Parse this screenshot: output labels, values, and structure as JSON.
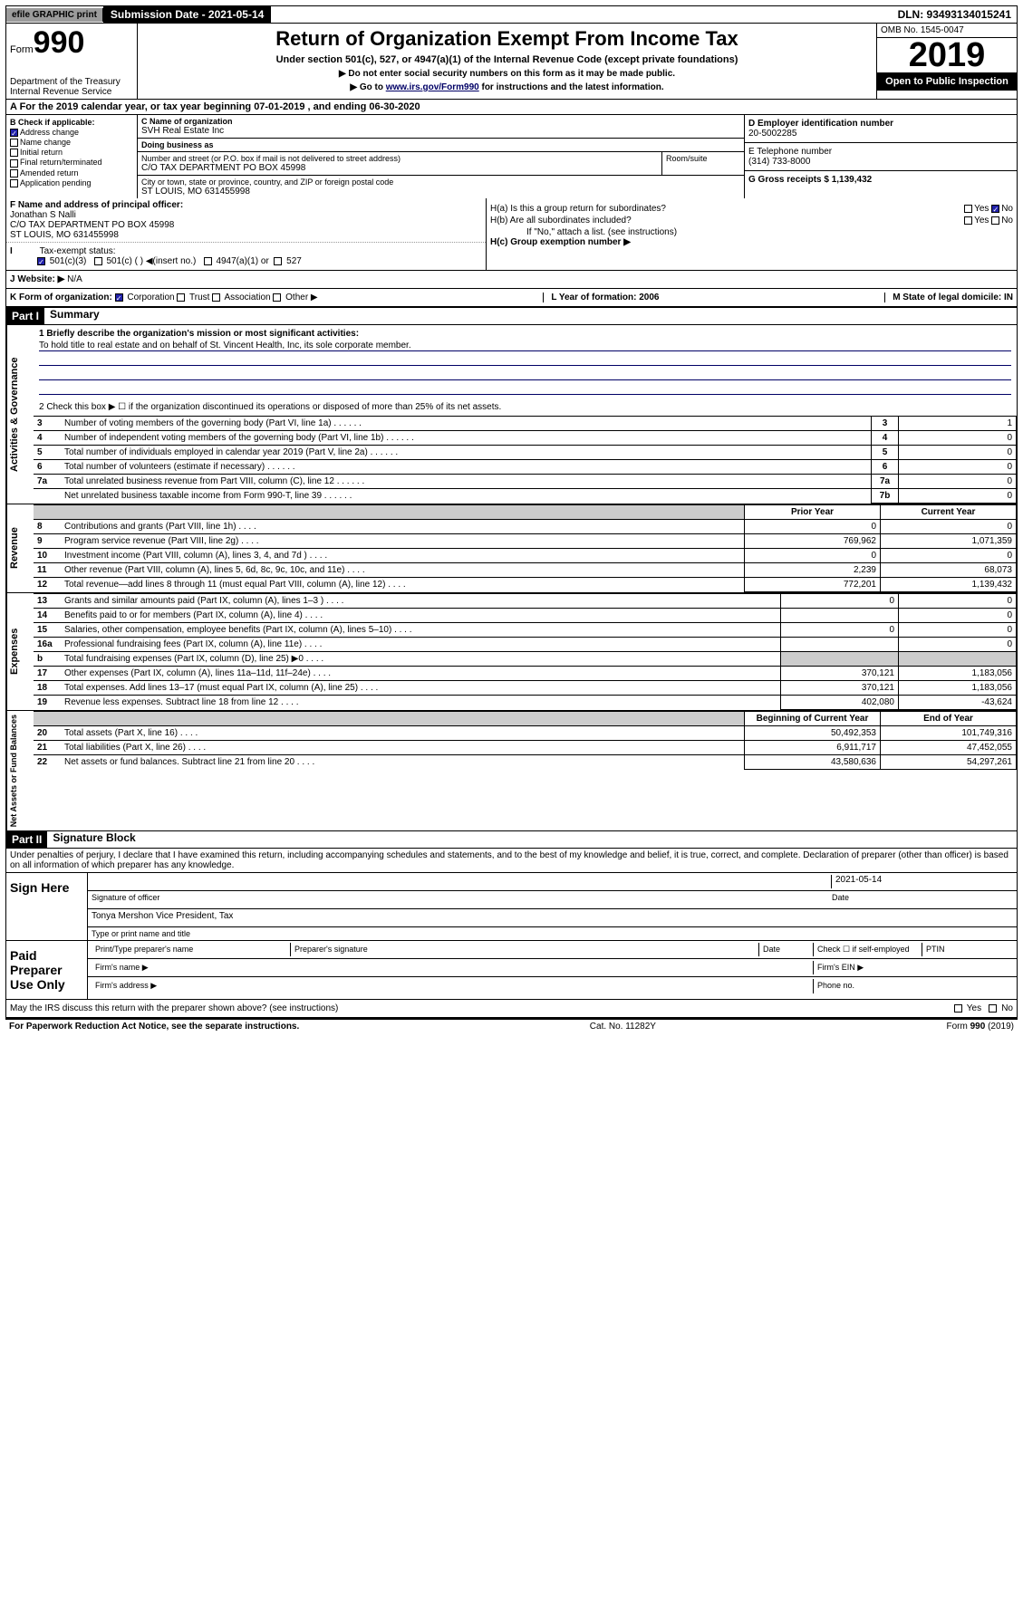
{
  "topbar": {
    "efile": "efile GRAPHIC print",
    "submission": "Submission Date - 2021-05-14",
    "dln": "DLN: 93493134015241"
  },
  "header": {
    "form_prefix": "Form",
    "form_number": "990",
    "dept": "Department of the Treasury Internal Revenue Service",
    "title": "Return of Organization Exempt From Income Tax",
    "subtitle": "Under section 501(c), 527, or 4947(a)(1) of the Internal Revenue Code (except private foundations)",
    "note1": "▶ Do not enter social security numbers on this form as it may be made public.",
    "note2_pre": "▶ Go to ",
    "note2_link": "www.irs.gov/Form990",
    "note2_post": " for instructions and the latest information.",
    "omb": "OMB No. 1545-0047",
    "year": "2019",
    "open_public": "Open to Public Inspection"
  },
  "period": "A For the 2019 calendar year, or tax year beginning 07-01-2019    , and ending 06-30-2020",
  "section_b": {
    "title": "B Check if applicable:",
    "items": [
      "Address change",
      "Name change",
      "Initial return",
      "Final return/terminated",
      "Amended return",
      "Application pending"
    ],
    "checked_idx": 0
  },
  "section_c": {
    "name_lbl": "C Name of organization",
    "name": "SVH Real Estate Inc",
    "dba_lbl": "Doing business as",
    "dba": "",
    "addr_lbl": "Number and street (or P.O. box if mail is not delivered to street address)",
    "addr": "C/O TAX DEPARTMENT PO BOX 45998",
    "room_lbl": "Room/suite",
    "city_lbl": "City or town, state or province, country, and ZIP or foreign postal code",
    "city": "ST LOUIS, MO  631455998"
  },
  "section_d": {
    "lbl": "D Employer identification number",
    "val": "20-5002285"
  },
  "section_e": {
    "lbl": "E Telephone number",
    "val": "(314) 733-8000"
  },
  "section_g": {
    "lbl": "G Gross receipts $ 1,139,432"
  },
  "section_f": {
    "lbl": "F Name and address of principal officer:",
    "name": "Jonathan S Nalli",
    "addr1": "C/O TAX DEPARTMENT PO BOX 45998",
    "addr2": "ST LOUIS, MO  631455998"
  },
  "section_i": {
    "lbl": "Tax-exempt status:",
    "opts": [
      "501(c)(3)",
      "501(c) (  ) ◀(insert no.)",
      "4947(a)(1) or",
      "527"
    ]
  },
  "section_h": {
    "ha": "H(a)  Is this a group return for subordinates?",
    "hb": "H(b)  Are all subordinates included?",
    "hb_note": "If \"No,\" attach a list. (see instructions)",
    "hc": "H(c)  Group exemption number ▶",
    "yes": "Yes",
    "no": "No"
  },
  "section_j": {
    "lbl": "J  Website: ▶",
    "val": "N/A"
  },
  "section_k": {
    "lbl": "K Form of organization:",
    "opts": [
      "Corporation",
      "Trust",
      "Association",
      "Other ▶"
    ],
    "l": "L Year of formation: 2006",
    "m": "M State of legal domicile: IN"
  },
  "part1": {
    "header": "Part I",
    "title": "Summary",
    "side_labels": [
      "Activities & Governance",
      "Revenue",
      "Expenses",
      "Net Assets or Fund Balances"
    ],
    "q1": "1  Briefly describe the organization's mission or most significant activities:",
    "q1_text": "To hold title to real estate and on behalf of St. Vincent Health, Inc, its sole corporate member.",
    "q2": "2   Check this box ▶ ☐  if the organization discontinued its operations or disposed of more than 25% of its net assets.",
    "rows_gov": [
      {
        "n": "3",
        "d": "Number of voting members of the governing body (Part VI, line 1a)",
        "box": "3",
        "v": "1"
      },
      {
        "n": "4",
        "d": "Number of independent voting members of the governing body (Part VI, line 1b)",
        "box": "4",
        "v": "0"
      },
      {
        "n": "5",
        "d": "Total number of individuals employed in calendar year 2019 (Part V, line 2a)",
        "box": "5",
        "v": "0"
      },
      {
        "n": "6",
        "d": "Total number of volunteers (estimate if necessary)",
        "box": "6",
        "v": "0"
      },
      {
        "n": "7a",
        "d": "Total unrelated business revenue from Part VIII, column (C), line 12",
        "box": "7a",
        "v": "0"
      },
      {
        "n": "",
        "d": "Net unrelated business taxable income from Form 990-T, line 39",
        "box": "7b",
        "v": "0"
      }
    ],
    "col_headers": [
      "Prior Year",
      "Current Year"
    ],
    "rows_rev": [
      {
        "n": "8",
        "d": "Contributions and grants (Part VIII, line 1h)",
        "p": "0",
        "c": "0"
      },
      {
        "n": "9",
        "d": "Program service revenue (Part VIII, line 2g)",
        "p": "769,962",
        "c": "1,071,359"
      },
      {
        "n": "10",
        "d": "Investment income (Part VIII, column (A), lines 3, 4, and 7d )",
        "p": "0",
        "c": "0"
      },
      {
        "n": "11",
        "d": "Other revenue (Part VIII, column (A), lines 5, 6d, 8c, 9c, 10c, and 11e)",
        "p": "2,239",
        "c": "68,073"
      },
      {
        "n": "12",
        "d": "Total revenue—add lines 8 through 11 (must equal Part VIII, column (A), line 12)",
        "p": "772,201",
        "c": "1,139,432"
      }
    ],
    "rows_exp": [
      {
        "n": "13",
        "d": "Grants and similar amounts paid (Part IX, column (A), lines 1–3 )",
        "p": "0",
        "c": "0"
      },
      {
        "n": "14",
        "d": "Benefits paid to or for members (Part IX, column (A), line 4)",
        "p": "",
        "c": "0"
      },
      {
        "n": "15",
        "d": "Salaries, other compensation, employee benefits (Part IX, column (A), lines 5–10)",
        "p": "0",
        "c": "0"
      },
      {
        "n": "16a",
        "d": "Professional fundraising fees (Part IX, column (A), line 11e)",
        "p": "",
        "c": "0"
      },
      {
        "n": "b",
        "d": "Total fundraising expenses (Part IX, column (D), line 25) ▶0",
        "p": "grey",
        "c": "grey"
      },
      {
        "n": "17",
        "d": "Other expenses (Part IX, column (A), lines 11a–11d, 11f–24e)",
        "p": "370,121",
        "c": "1,183,056"
      },
      {
        "n": "18",
        "d": "Total expenses. Add lines 13–17 (must equal Part IX, column (A), line 25)",
        "p": "370,121",
        "c": "1,183,056"
      },
      {
        "n": "19",
        "d": "Revenue less expenses. Subtract line 18 from line 12",
        "p": "402,080",
        "c": "-43,624"
      }
    ],
    "col_headers2": [
      "Beginning of Current Year",
      "End of Year"
    ],
    "rows_net": [
      {
        "n": "20",
        "d": "Total assets (Part X, line 16)",
        "p": "50,492,353",
        "c": "101,749,316"
      },
      {
        "n": "21",
        "d": "Total liabilities (Part X, line 26)",
        "p": "6,911,717",
        "c": "47,452,055"
      },
      {
        "n": "22",
        "d": "Net assets or fund balances. Subtract line 21 from line 20",
        "p": "43,580,636",
        "c": "54,297,261"
      }
    ]
  },
  "part2": {
    "header": "Part II",
    "title": "Signature Block",
    "perjury": "Under penalties of perjury, I declare that I have examined this return, including accompanying schedules and statements, and to the best of my knowledge and belief, it is true, correct, and complete. Declaration of preparer (other than officer) is based on all information of which preparer has any knowledge.",
    "sign_here": "Sign Here",
    "date": "2021-05-14",
    "sig_officer": "Signature of officer",
    "date_lbl": "Date",
    "officer_name": "Tonya Mershon  Vice President, Tax",
    "type_name": "Type or print name and title",
    "paid_prep": "Paid Preparer Use Only",
    "prep_name_lbl": "Print/Type preparer's name",
    "prep_sig_lbl": "Preparer's signature",
    "check_self": "Check ☐ if self-employed",
    "ptin": "PTIN",
    "firm_name": "Firm's name    ▶",
    "firm_ein": "Firm's EIN ▶",
    "firm_addr": "Firm's address ▶",
    "phone": "Phone no.",
    "discuss": "May the IRS discuss this return with the preparer shown above? (see instructions)",
    "yes": "Yes",
    "no": "No"
  },
  "footer": {
    "left": "For Paperwork Reduction Act Notice, see the separate instructions.",
    "mid": "Cat. No. 11282Y",
    "right": "Form 990 (2019)"
  }
}
